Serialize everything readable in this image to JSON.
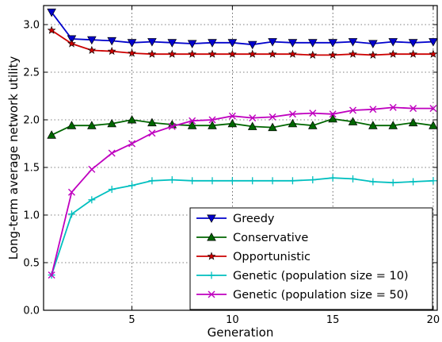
{
  "chart_data": {
    "type": "line",
    "title": "",
    "xlabel": "Generation",
    "ylabel": "Long-term average network utility",
    "xlim": [
      0.6,
      20.2
    ],
    "ylim": [
      0.0,
      3.2
    ],
    "xticks": [
      5,
      10,
      15,
      20
    ],
    "xtick_labels": [
      "5",
      "10",
      "15",
      "20"
    ],
    "yticks": [
      0.0,
      0.5,
      1.0,
      1.5,
      2.0,
      2.5,
      3.0
    ],
    "ytick_labels": [
      "0.0",
      "0.5",
      "1.0",
      "1.5",
      "2.0",
      "2.5",
      "3.0"
    ],
    "grid": true,
    "legend_position": "lower-right",
    "x": [
      1,
      2,
      3,
      4,
      5,
      6,
      7,
      8,
      9,
      10,
      11,
      12,
      13,
      14,
      15,
      16,
      17,
      18,
      19,
      20
    ],
    "series": [
      {
        "name": "Greedy",
        "color": "#0000cc",
        "marker": "triangle-down",
        "values": [
          3.13,
          2.85,
          2.84,
          2.83,
          2.81,
          2.82,
          2.81,
          2.8,
          2.81,
          2.81,
          2.79,
          2.82,
          2.81,
          2.81,
          2.81,
          2.82,
          2.8,
          2.82,
          2.81,
          2.82
        ]
      },
      {
        "name": "Conservative",
        "color": "#006600",
        "marker": "triangle-up",
        "values": [
          1.84,
          1.94,
          1.94,
          1.96,
          2.0,
          1.97,
          1.95,
          1.94,
          1.94,
          1.96,
          1.93,
          1.92,
          1.96,
          1.94,
          2.01,
          1.98,
          1.94,
          1.94,
          1.97,
          1.94
        ]
      },
      {
        "name": "Opportunistic",
        "color": "#cc0000",
        "marker": "star",
        "values": [
          2.94,
          2.8,
          2.73,
          2.72,
          2.7,
          2.69,
          2.69,
          2.69,
          2.69,
          2.69,
          2.69,
          2.69,
          2.69,
          2.68,
          2.68,
          2.69,
          2.68,
          2.69,
          2.69,
          2.69
        ]
      },
      {
        "name": "Genetic (population size = 10)",
        "color": "#00bfbf",
        "marker": "plus",
        "values": [
          0.37,
          1.01,
          1.16,
          1.27,
          1.31,
          1.36,
          1.37,
          1.36,
          1.36,
          1.36,
          1.36,
          1.36,
          1.36,
          1.37,
          1.39,
          1.38,
          1.35,
          1.34,
          1.35,
          1.36
        ]
      },
      {
        "name": "Genetic (population size = 50)",
        "color": "#bf00bf",
        "marker": "x",
        "values": [
          0.37,
          1.24,
          1.48,
          1.65,
          1.75,
          1.86,
          1.93,
          1.99,
          2.0,
          2.04,
          2.02,
          2.03,
          2.06,
          2.07,
          2.06,
          2.1,
          2.11,
          2.13,
          2.12,
          2.12
        ]
      }
    ]
  }
}
